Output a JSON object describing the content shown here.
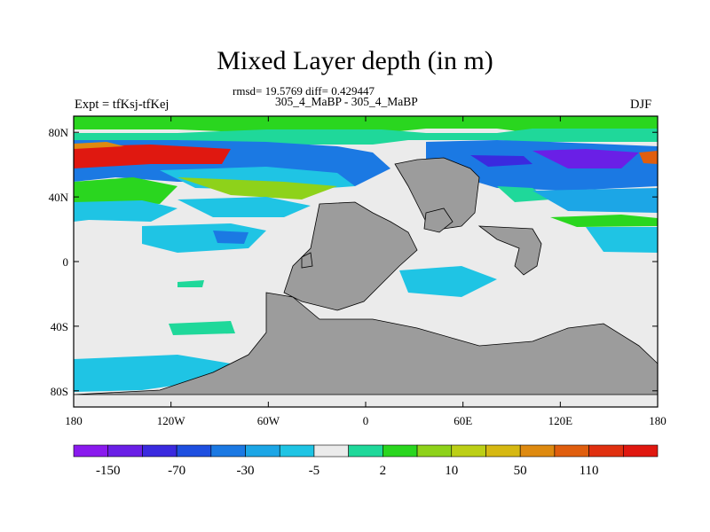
{
  "map": {
    "title": "Mixed Layer depth (in m)",
    "stats": "rmsd= 19.5769 diff= 0.429447",
    "subtitle": "305_4_MaBP - 305_4_MaBP",
    "expt": "Expt = tfKsj-tfKej",
    "season": "DJF",
    "projection": "cylindrical-equidistant",
    "lon_range": [
      -180,
      180
    ],
    "lat_range": [
      -90,
      90
    ],
    "lon_ticks": [
      {
        "value": -180,
        "label": "180"
      },
      {
        "value": -120,
        "label": "120W"
      },
      {
        "value": -60,
        "label": "60W"
      },
      {
        "value": 0,
        "label": "0"
      },
      {
        "value": 60,
        "label": "60E"
      },
      {
        "value": 120,
        "label": "120E"
      },
      {
        "value": 180,
        "label": "180"
      }
    ],
    "lat_ticks": [
      {
        "value": 80,
        "label": "80N"
      },
      {
        "value": 40,
        "label": "40N"
      },
      {
        "value": 0,
        "label": "0"
      },
      {
        "value": -40,
        "label": "40S"
      },
      {
        "value": -80,
        "label": "80S"
      }
    ],
    "land_color": "#9c9c9c",
    "missing_color": "#ebebeb"
  },
  "colorbar": {
    "colors": [
      "#8a1aee",
      "#6a1fe6",
      "#3a2adf",
      "#1e4fe0",
      "#1b79e3",
      "#1ca6e6",
      "#1fc4e4",
      "#ebebeb",
      "#1fd89a",
      "#2ad61f",
      "#8ed21a",
      "#bccf16",
      "#d6b812",
      "#de8a10",
      "#e05e0e",
      "#e03010",
      "#e01810"
    ],
    "labels": [
      {
        "index": 1,
        "text": "-150"
      },
      {
        "index": 3,
        "text": "-70"
      },
      {
        "index": 5,
        "text": "-30"
      },
      {
        "index": 7,
        "text": "-5"
      },
      {
        "index": 9,
        "text": "2"
      },
      {
        "index": 11,
        "text": "10"
      },
      {
        "index": 13,
        "text": "50"
      },
      {
        "index": 15,
        "text": "110"
      }
    ]
  }
}
